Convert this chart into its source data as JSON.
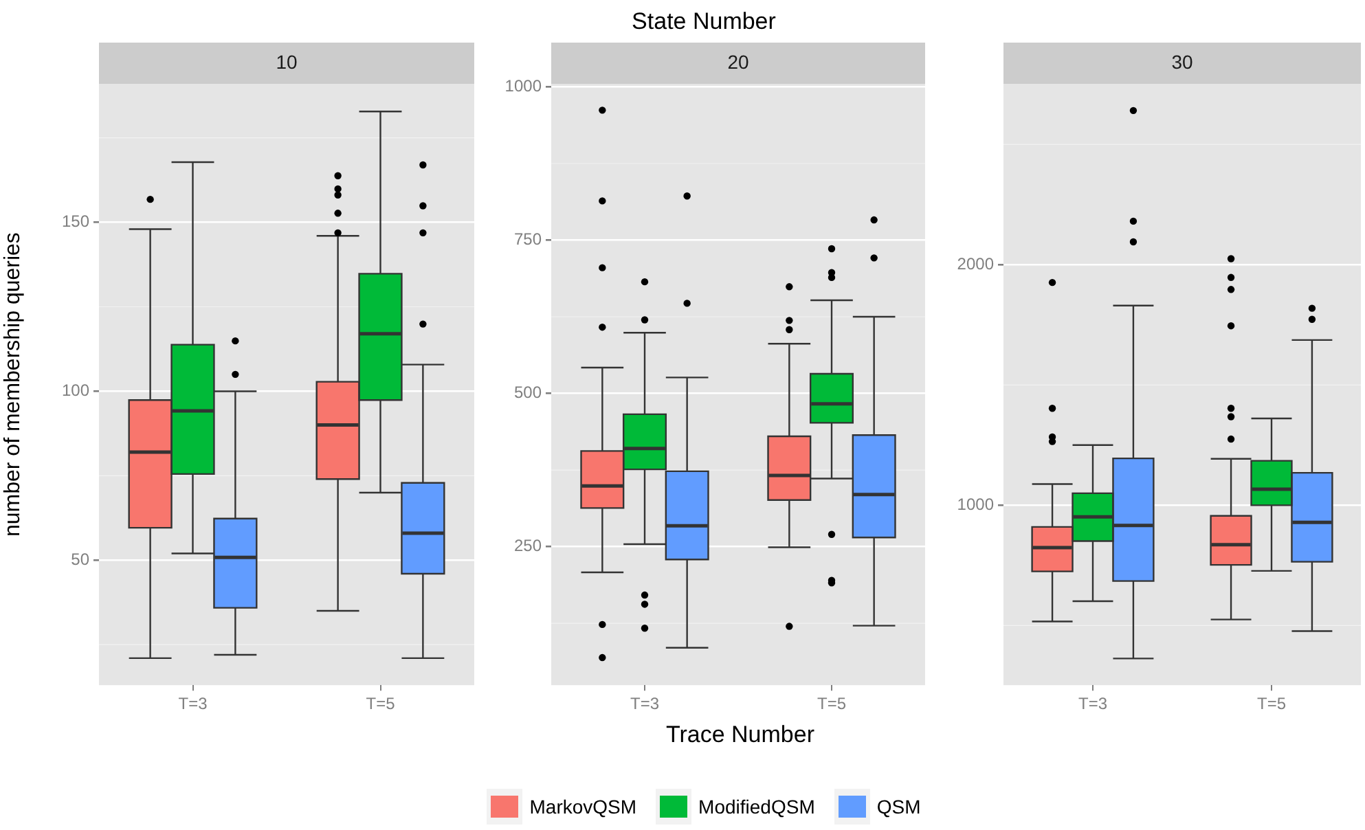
{
  "chart_data": [
    {
      "type": "box",
      "title": "10",
      "ylabel": "number of membership queries",
      "categories": [
        "T=3",
        "T=5"
      ],
      "ylim": [
        13,
        191
      ],
      "yticks": [
        50,
        100,
        150
      ],
      "grid": "y",
      "legend": false,
      "series": [
        {
          "color": "#f8766d",
          "boxes": [
            {
              "low": 21,
              "q1": 59.6,
              "median": 82,
              "q3": 97.4,
              "high": 148,
              "outliers": [
                156.8
              ]
            },
            {
              "low": 35,
              "q1": 74,
              "median": 90,
              "q3": 102.8,
              "high": 146,
              "outliers": [
                163.8,
                159.9,
                158.1,
                152.7,
                146.9
              ]
            }
          ]
        },
        {
          "color": "#00ba38",
          "boxes": [
            {
              "low": 52,
              "q1": 75.5,
              "median": 94.2,
              "q3": 113.8,
              "high": 167.8
            },
            {
              "low": 70,
              "q1": 97.4,
              "median": 117,
              "q3": 134.8,
              "high": 182.8
            }
          ]
        },
        {
          "color": "#619cff",
          "boxes": [
            {
              "low": 22,
              "q1": 35.9,
              "median": 50.8,
              "q3": 62.3,
              "high": 100,
              "outliers": [
                114.9,
                105
              ]
            },
            {
              "low": 21,
              "q1": 46,
              "median": 58,
              "q3": 72.9,
              "high": 107.9,
              "outliers": [
                167,
                154.9,
                146.9,
                119.9
              ]
            }
          ]
        }
      ]
    },
    {
      "type": "box",
      "title": "20",
      "xlabel": "Trace Number",
      "annotations": [
        "State Number"
      ],
      "categories": [
        "T=3",
        "T=5"
      ],
      "ylim": [
        24,
        1005
      ],
      "yticks": [
        250,
        500,
        750,
        1000
      ],
      "grid": "y",
      "legend": "bottom",
      "series": [
        {
          "name": "MarkovQSM",
          "color": "#f8766d",
          "boxes": [
            {
              "low": 208,
              "q1": 313,
              "median": 349,
              "q3": 406,
              "high": 542,
              "outliers": [
                962,
                814,
                705,
                608,
                123,
                69
              ]
            },
            {
              "low": 249,
              "q1": 326,
              "median": 366,
              "q3": 430,
              "high": 581,
              "outliers": [
                674,
                619,
                604,
                120
              ]
            }
          ]
        },
        {
          "name": "ModifiedQSM",
          "color": "#00ba38",
          "boxes": [
            {
              "low": 254,
              "q1": 376,
              "median": 410,
              "q3": 466,
              "high": 599,
              "outliers": [
                682,
                620,
                171,
                156,
                117
              ]
            },
            {
              "low": 361,
              "q1": 452,
              "median": 483,
              "q3": 532,
              "high": 652,
              "outliers": [
                736,
                697,
                689,
                270,
                195,
                191
              ]
            }
          ]
        },
        {
          "name": "QSM",
          "color": "#619cff",
          "boxes": [
            {
              "low": 85,
              "q1": 229,
              "median": 284,
              "q3": 373,
              "high": 526,
              "outliers": [
                822,
                647
              ]
            },
            {
              "low": 121,
              "q1": 265,
              "median": 335,
              "q3": 432,
              "high": 625,
              "outliers": [
                783,
                721
              ]
            }
          ]
        }
      ]
    },
    {
      "type": "box",
      "title": "30",
      "categories": [
        "T=3",
        "T=5"
      ],
      "ylim": [
        252,
        2752
      ],
      "yticks": [
        1000,
        2000
      ],
      "grid": "y",
      "legend": false,
      "series": [
        {
          "color": "#f8766d",
          "boxes": [
            {
              "low": 517,
              "q1": 725,
              "median": 824,
              "q3": 910,
              "high": 1088,
              "outliers": [
                1926,
                1403,
                1284,
                1265
              ]
            },
            {
              "low": 525,
              "q1": 752,
              "median": 836,
              "q3": 956,
              "high": 1193,
              "outliers": [
                2025,
                1947,
                1897,
                1746,
                1403,
                1368,
                1275
              ]
            }
          ]
        },
        {
          "color": "#00ba38",
          "boxes": [
            {
              "low": 601,
              "q1": 851,
              "median": 952,
              "q3": 1050,
              "high": 1250
            },
            {
              "low": 727,
              "q1": 1000,
              "median": 1067,
              "q3": 1185,
              "high": 1361
            }
          ]
        },
        {
          "color": "#619cff",
          "boxes": [
            {
              "low": 363,
              "q1": 685,
              "median": 916,
              "q3": 1195,
              "high": 1830,
              "outliers": [
                2641,
                2181,
                2095
              ]
            },
            {
              "low": 477,
              "q1": 765,
              "median": 929,
              "q3": 1135,
              "high": 1687,
              "outliers": [
                1819,
                1773
              ]
            }
          ]
        }
      ]
    }
  ]
}
